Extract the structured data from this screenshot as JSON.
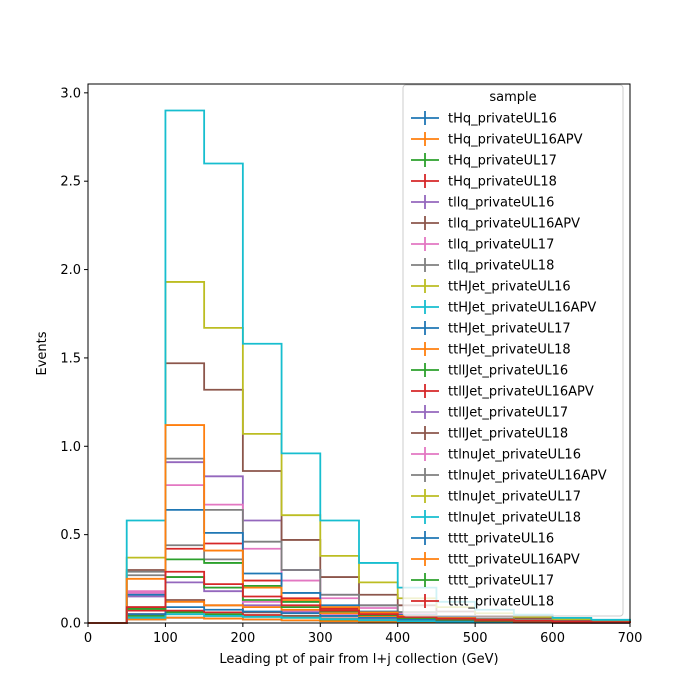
{
  "chart_data": {
    "type": "histogram-step",
    "xlabel": "Leading pt of pair from l+j collection (GeV)",
    "ylabel": "Events",
    "xlim": [
      0,
      700
    ],
    "ylim": [
      0,
      3.05
    ],
    "xticks": [
      0,
      100,
      200,
      300,
      400,
      500,
      600,
      700
    ],
    "xtick_labels": [
      "0",
      "100",
      "200",
      "300",
      "400",
      "500",
      "600",
      "700"
    ],
    "yticks": [
      0.0,
      0.5,
      1.0,
      1.5,
      2.0,
      2.5,
      3.0
    ],
    "ytick_labels": [
      "0.0",
      "0.5",
      "1.0",
      "1.5",
      "2.0",
      "2.5",
      "3.0"
    ],
    "grid": false,
    "legend": {
      "title": "sample",
      "placement": "top-right",
      "style": "errorbar-cross"
    },
    "bin_edges": [
      0,
      50,
      100,
      150,
      200,
      250,
      300,
      350,
      400,
      450,
      500,
      550,
      600,
      650,
      700
    ],
    "series": [
      {
        "name": "tHq_privateUL16",
        "color": "#1f77b4",
        "values": [
          0,
          0.02,
          0.03,
          0.025,
          0.02,
          0.015,
          0.01,
          0.008,
          0.006,
          0.004,
          0.003,
          0.002,
          0.001,
          0.001
        ]
      },
      {
        "name": "tHq_privateUL16APV",
        "color": "#ff7f0e",
        "values": [
          0,
          0.02,
          0.03,
          0.025,
          0.02,
          0.015,
          0.01,
          0.008,
          0.006,
          0.004,
          0.003,
          0.002,
          0.001,
          0.001
        ]
      },
      {
        "name": "tHq_privateUL17",
        "color": "#2ca02c",
        "values": [
          0,
          0.04,
          0.06,
          0.05,
          0.04,
          0.03,
          0.02,
          0.015,
          0.01,
          0.008,
          0.005,
          0.004,
          0.002,
          0.001
        ]
      },
      {
        "name": "tHq_privateUL18",
        "color": "#d62728",
        "values": [
          0,
          0.05,
          0.07,
          0.06,
          0.045,
          0.035,
          0.025,
          0.018,
          0.012,
          0.009,
          0.006,
          0.004,
          0.003,
          0.002
        ]
      },
      {
        "name": "tllq_privateUL16",
        "color": "#9467bd",
        "values": [
          0,
          0.15,
          0.23,
          0.18,
          0.1,
          0.06,
          0.04,
          0.025,
          0.015,
          0.01,
          0.006,
          0.004,
          0.002,
          0.001
        ]
      },
      {
        "name": "tllq_privateUL16APV",
        "color": "#8c564b",
        "values": [
          0,
          0.09,
          0.13,
          0.1,
          0.06,
          0.04,
          0.025,
          0.015,
          0.01,
          0.006,
          0.004,
          0.002,
          0.001,
          0.001
        ]
      },
      {
        "name": "tllq_privateUL17",
        "color": "#e377c2",
        "values": [
          0,
          0.17,
          0.26,
          0.2,
          0.12,
          0.07,
          0.045,
          0.03,
          0.018,
          0.012,
          0.007,
          0.005,
          0.003,
          0.002
        ]
      },
      {
        "name": "tllq_privateUL18",
        "color": "#7f7f7f",
        "values": [
          0,
          0.27,
          0.44,
          0.36,
          0.2,
          0.12,
          0.07,
          0.045,
          0.028,
          0.018,
          0.011,
          0.007,
          0.004,
          0.003
        ]
      },
      {
        "name": "ttHJet_privateUL16",
        "color": "#bcbd22",
        "values": [
          0,
          0.03,
          0.05,
          0.04,
          0.035,
          0.03,
          0.022,
          0.016,
          0.011,
          0.008,
          0.006,
          0.004,
          0.003,
          0.002
        ]
      },
      {
        "name": "ttHJet_privateUL16APV",
        "color": "#17becf",
        "values": [
          0,
          0.03,
          0.05,
          0.04,
          0.035,
          0.03,
          0.022,
          0.016,
          0.011,
          0.008,
          0.006,
          0.004,
          0.003,
          0.002
        ]
      },
      {
        "name": "ttHJet_privateUL17",
        "color": "#1f77b4",
        "values": [
          0,
          0.05,
          0.09,
          0.075,
          0.065,
          0.055,
          0.04,
          0.03,
          0.02,
          0.014,
          0.01,
          0.007,
          0.005,
          0.003
        ]
      },
      {
        "name": "ttHJet_privateUL18",
        "color": "#ff7f0e",
        "values": [
          0,
          0.07,
          0.12,
          0.1,
          0.09,
          0.075,
          0.055,
          0.04,
          0.028,
          0.02,
          0.014,
          0.01,
          0.007,
          0.004
        ]
      },
      {
        "name": "ttllJet_privateUL16",
        "color": "#2ca02c",
        "values": [
          0,
          0.08,
          0.36,
          0.34,
          0.21,
          0.12,
          0.07,
          0.045,
          0.028,
          0.018,
          0.011,
          0.007,
          0.004,
          0.003
        ]
      },
      {
        "name": "ttllJet_privateUL16APV",
        "color": "#d62728",
        "values": [
          0,
          0.07,
          0.42,
          0.45,
          0.24,
          0.14,
          0.08,
          0.05,
          0.03,
          0.02,
          0.012,
          0.008,
          0.005,
          0.003
        ]
      },
      {
        "name": "ttllJet_privateUL17",
        "color": "#9467bd",
        "values": [
          0,
          0.16,
          0.91,
          0.83,
          0.58,
          0.3,
          0.16,
          0.1,
          0.06,
          0.04,
          0.025,
          0.016,
          0.01,
          0.006
        ]
      },
      {
        "name": "ttllJet_privateUL18",
        "color": "#8c564b",
        "values": [
          0,
          0.3,
          1.47,
          1.32,
          0.86,
          0.47,
          0.26,
          0.16,
          0.1,
          0.065,
          0.04,
          0.026,
          0.016,
          0.01
        ]
      },
      {
        "name": "ttlnuJet_privateUL16",
        "color": "#e377c2",
        "values": [
          0,
          0.18,
          0.78,
          0.67,
          0.42,
          0.24,
          0.14,
          0.085,
          0.052,
          0.033,
          0.021,
          0.013,
          0.008,
          0.005
        ]
      },
      {
        "name": "ttlnuJet_privateUL16APV",
        "color": "#7f7f7f",
        "values": [
          0,
          0.29,
          0.93,
          0.64,
          0.46,
          0.3,
          0.16,
          0.1,
          0.062,
          0.04,
          0.025,
          0.016,
          0.01,
          0.006
        ]
      },
      {
        "name": "ttlnuJet_privateUL17",
        "color": "#bcbd22",
        "values": [
          0,
          0.37,
          1.93,
          1.67,
          1.07,
          0.61,
          0.38,
          0.23,
          0.14,
          0.09,
          0.055,
          0.035,
          0.022,
          0.014
        ]
      },
      {
        "name": "ttlnuJet_privateUL18",
        "color": "#17becf",
        "values": [
          0,
          0.58,
          2.9,
          2.6,
          1.58,
          0.96,
          0.58,
          0.34,
          0.2,
          0.12,
          0.075,
          0.047,
          0.029,
          0.018
        ]
      },
      {
        "name": "tttt_privateUL16",
        "color": "#1f77b4",
        "values": [
          0,
          0.16,
          0.64,
          0.51,
          0.28,
          0.17,
          0.1,
          0.065,
          0.045,
          0.03,
          0.02,
          0.014,
          0.01,
          0.007
        ]
      },
      {
        "name": "tttt_privateUL16APV",
        "color": "#ff7f0e",
        "values": [
          0,
          0.25,
          1.12,
          0.41,
          0.2,
          0.13,
          0.09,
          0.06,
          0.04,
          0.028,
          0.019,
          0.013,
          0.009,
          0.006
        ]
      },
      {
        "name": "tttt_privateUL17",
        "color": "#2ca02c",
        "values": [
          0,
          0.08,
          0.26,
          0.2,
          0.13,
          0.09,
          0.065,
          0.045,
          0.03,
          0.021,
          0.015,
          0.01,
          0.007,
          0.005
        ]
      },
      {
        "name": "tttt_privateUL18",
        "color": "#d62728",
        "values": [
          0,
          0.09,
          0.29,
          0.22,
          0.15,
          0.1,
          0.07,
          0.05,
          0.034,
          0.024,
          0.017,
          0.012,
          0.008,
          0.005
        ]
      }
    ]
  }
}
